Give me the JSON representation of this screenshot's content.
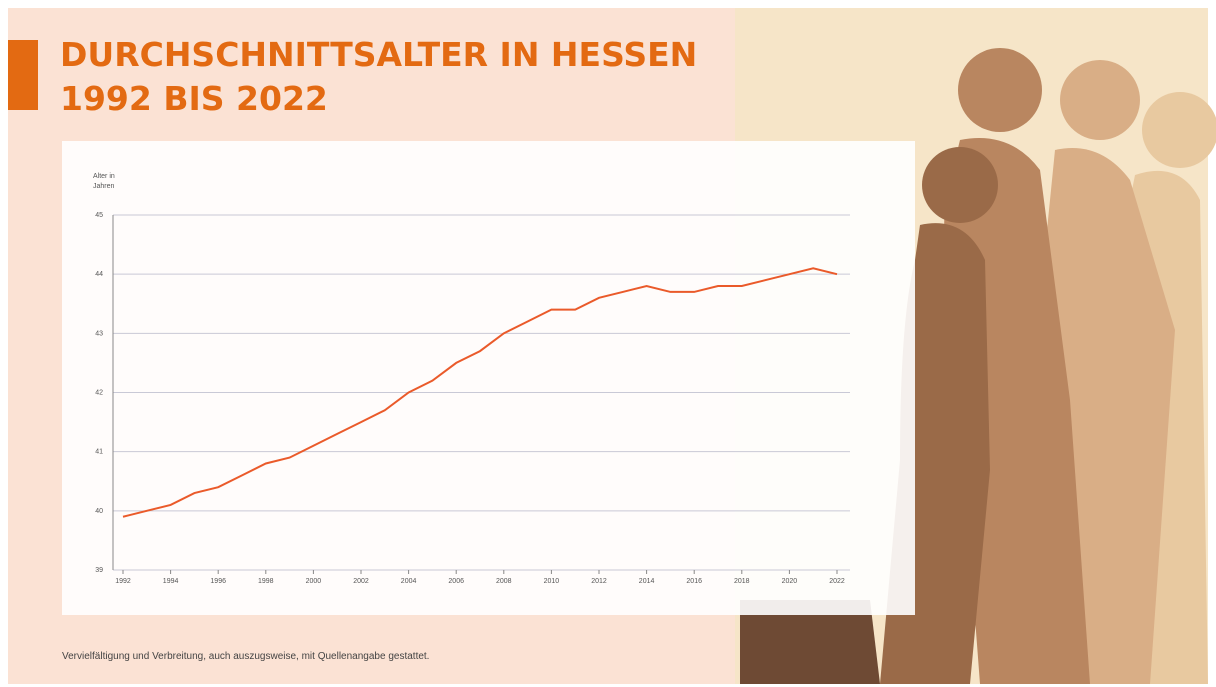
{
  "chart_data": {
    "type": "line",
    "title": "DURCHSCHNITTSALTER IN HESSEN",
    "subtitle": "1992 BIS 2022",
    "ylabel": [
      "Alter in",
      "Jahren"
    ],
    "x": [
      1992,
      1993,
      1994,
      1995,
      1996,
      1997,
      1998,
      1999,
      2000,
      2001,
      2002,
      2003,
      2004,
      2005,
      2006,
      2007,
      2008,
      2009,
      2010,
      2011,
      2012,
      2013,
      2014,
      2015,
      2016,
      2017,
      2018,
      2019,
      2020,
      2021,
      2022
    ],
    "series": [
      {
        "color": "#ea5a2a",
        "values": [
          39.9,
          40.0,
          40.1,
          40.3,
          40.4,
          40.6,
          40.8,
          40.9,
          41.1,
          41.3,
          41.5,
          41.7,
          42.0,
          42.2,
          42.5,
          42.7,
          43.0,
          43.2,
          43.4,
          43.4,
          43.6,
          43.7,
          43.8,
          43.7,
          43.7,
          43.8,
          43.8,
          43.9,
          44.0,
          44.1,
          44.0
        ]
      }
    ],
    "xlim": [
      1992,
      2022
    ],
    "xticks": [
      1992,
      1994,
      1996,
      1998,
      2000,
      2002,
      2004,
      2006,
      2008,
      2010,
      2012,
      2014,
      2016,
      2018,
      2020,
      2022
    ],
    "ylim": [
      39,
      45
    ],
    "yticks": [
      39,
      40,
      41,
      42,
      43,
      44,
      45
    ],
    "grid": true,
    "footnote": "Vervielfältigung und Verbreitung, auch auszugsweise, mit Quellenangabe gestattet."
  }
}
